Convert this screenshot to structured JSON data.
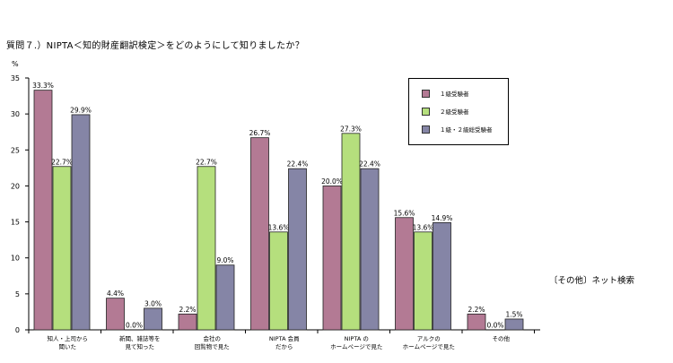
{
  "title": "質問７.）NIPTA＜知的財産翻訳検定＞をどのようにして知りましたか？",
  "note": "〔その他〕ネット検索",
  "colors": {
    "s1": "#b37a94",
    "s2": "#b5df7d",
    "s3": "#8585a6"
  },
  "chart_data": {
    "type": "bar",
    "title": "質問７.）NIPTA＜知的財産翻訳検定＞をどのようにして知りましたか？",
    "ylabel": "%",
    "ylim": [
      0,
      35
    ],
    "yticks": [
      0,
      5,
      10,
      15,
      20,
      25,
      30,
      35
    ],
    "grid": false,
    "legend_position": "top-right",
    "categories": [
      [
        "知人・上司から",
        "聞いた"
      ],
      [
        "新聞、雑誌等を",
        "見て知った"
      ],
      [
        "会社の",
        "回覧物で見た"
      ],
      [
        "NIPTA 会員",
        "だから"
      ],
      [
        "NIPTA の",
        "ホームページで見た"
      ],
      [
        "アルクの",
        "ホームページで見た"
      ],
      [
        "その他"
      ]
    ],
    "series": [
      {
        "name": "１級受験者",
        "values": [
          33.3,
          4.4,
          2.2,
          26.7,
          20.0,
          15.6,
          2.2
        ],
        "labels": [
          "33.3%",
          "4.4%",
          "2.2%",
          "26.7%",
          "20.0%",
          "15.6%",
          "2.2%"
        ]
      },
      {
        "name": "２級受験者",
        "values": [
          22.7,
          0.0,
          22.7,
          13.6,
          27.3,
          13.6,
          0.0
        ],
        "labels": [
          "22.7%",
          "0.0%",
          "22.7%",
          "13.6%",
          "27.3%",
          "13.6%",
          "0.0%"
        ]
      },
      {
        "name": "１級・２級総受験者",
        "values": [
          29.9,
          3.0,
          9.0,
          22.4,
          22.4,
          14.9,
          1.5
        ],
        "labels": [
          "29.9%",
          "3.0%",
          "9.0%",
          "22.4%",
          "22.4%",
          "14.9%",
          "1.5%"
        ]
      }
    ]
  }
}
